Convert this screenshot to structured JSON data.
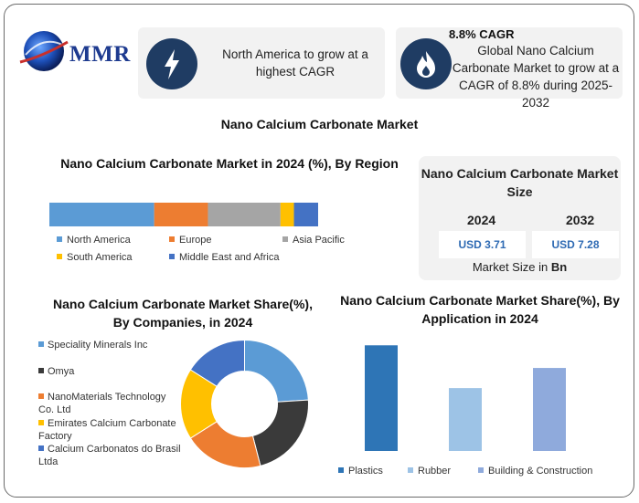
{
  "logo": {
    "text": "MMR"
  },
  "header": {
    "card1": {
      "icon": "lightning-icon",
      "text": "North America to grow at a highest CAGR"
    },
    "card2": {
      "icon": "flame-icon",
      "title": "8.8% CAGR",
      "text": "Global Nano Calcium Carbonate Market to grow at a CAGR of 8.8% during 2025-2032"
    }
  },
  "main_title": "Nano Calcium Carbonate Market",
  "market_size": {
    "title": "Nano Calcium Carbonate Market Size",
    "year1": "2024",
    "value1": "USD 3.71",
    "year2": "2032",
    "value2": "USD 7.28",
    "footer_prefix": "Market Size in ",
    "footer_unit": "Bn"
  },
  "colors": {
    "blue": "#5b9bd5",
    "orange": "#ed7d31",
    "gray": "#a5a5a5",
    "yellow": "#ffc000",
    "dark_blue": "#4472c4",
    "dark": "#3a3a3a",
    "navy": "#1f3c63",
    "bar1": "#2e75b6",
    "bar2": "#9dc3e6",
    "bar3": "#8faadc"
  },
  "chart_data": [
    {
      "type": "bar",
      "title": "Nano Calcium Carbonate Market in 2024 (%), By Region",
      "stacked": true,
      "orientation": "horizontal",
      "series": [
        {
          "name": "North America",
          "values": [
            39
          ]
        },
        {
          "name": "Europe",
          "values": [
            20
          ]
        },
        {
          "name": "Asia Pacific",
          "values": [
            27
          ]
        },
        {
          "name": "South America",
          "values": [
            5
          ]
        },
        {
          "name": "Middle East and Africa",
          "values": [
            9
          ]
        }
      ],
      "legend_position": "bottom"
    },
    {
      "type": "pie",
      "title": "Nano Calcium Carbonate Market Share(%), By Companies, in 2024",
      "donut": true,
      "categories": [
        "Speciality Minerals Inc",
        "Omya",
        "NanoMaterials Technology Co. Ltd",
        "Emirates Calcium Carbonate Factory",
        "Calcium Carbonatos do Brasil Ltda"
      ],
      "values": [
        24,
        22,
        20,
        18,
        16
      ],
      "legend_position": "left"
    },
    {
      "type": "bar",
      "title": "Nano Calcium Carbonate Market Share(%), By Application in 2024",
      "series": [
        {
          "name": "Plastics",
          "values": [
            42
          ]
        },
        {
          "name": "Rubber",
          "values": [
            25
          ]
        },
        {
          "name": "Building & Construction",
          "values": [
            33
          ]
        }
      ],
      "ylim": [
        0,
        45
      ],
      "grid": false,
      "legend_position": "bottom"
    }
  ]
}
